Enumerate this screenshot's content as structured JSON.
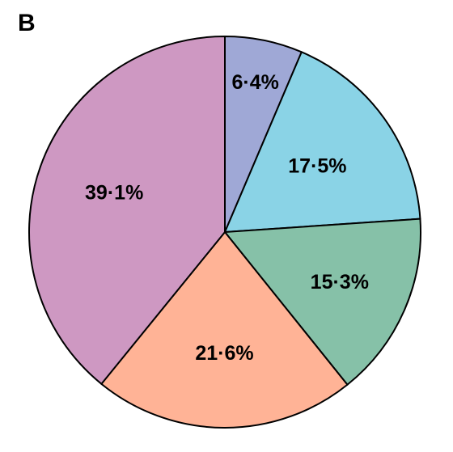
{
  "panel_label": "B",
  "chart_data": {
    "type": "pie",
    "start_angle_deg": 0,
    "direction": "clockwise",
    "slices": [
      {
        "label": "6·4%",
        "value": 6.4,
        "color": "#9FA8D6"
      },
      {
        "label": "17·5%",
        "value": 17.5,
        "color": "#8AD3E6"
      },
      {
        "label": "15·3%",
        "value": 15.3,
        "color": "#86C1A8"
      },
      {
        "label": "21·6%",
        "value": 21.6,
        "color": "#FFB396"
      },
      {
        "label": "39·1%",
        "value": 39.1,
        "color": "#CE98C2"
      }
    ]
  }
}
